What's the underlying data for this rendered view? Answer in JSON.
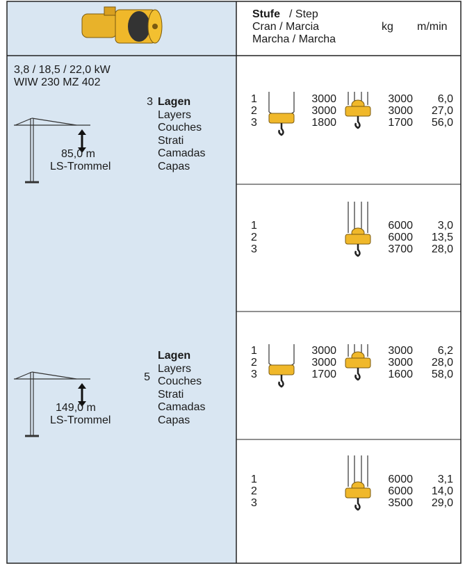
{
  "header": {
    "step_bold": "Stufe",
    "step_rest": "/ Step",
    "line2": "Cran / Marcia",
    "line3": "Marcha / Marcha",
    "kg": "kg",
    "speed": "m/min"
  },
  "motor": {
    "power": "3,8 / 18,5 / 22,0 kW",
    "model": "WIW 230 MZ 402"
  },
  "groups": [
    {
      "layers_count": "3",
      "labels": [
        "Lagen",
        "Layers",
        "Couches",
        "Strati",
        "Camadas",
        "Capas"
      ],
      "length": "85,0 m",
      "drum": "LS-Trommel"
    },
    {
      "layers_count": "5",
      "labels": [
        "Lagen",
        "Layers",
        "Couches",
        "Strati",
        "Camadas",
        "Capas"
      ],
      "length": "149,0 m",
      "drum": "LS-Trommel"
    }
  ],
  "sections": [
    {
      "steps": [
        "1",
        "2",
        "3"
      ],
      "kg_two_fall": [
        "3000",
        "3000",
        "1800"
      ],
      "kg_four_fall": [
        "3000",
        "3000",
        "1700"
      ],
      "speed": [
        "6,0",
        "27,0",
        "56,0"
      ]
    },
    {
      "steps": [
        "1",
        "2",
        "3"
      ],
      "kg_four_fall": [
        "6000",
        "6000",
        "3700"
      ],
      "speed": [
        "3,0",
        "13,5",
        "28,0"
      ]
    },
    {
      "steps": [
        "1",
        "2",
        "3"
      ],
      "kg_two_fall": [
        "3000",
        "3000",
        "1700"
      ],
      "kg_four_fall": [
        "3000",
        "3000",
        "1600"
      ],
      "speed": [
        "6,2",
        "28,0",
        "58,0"
      ]
    },
    {
      "steps": [
        "1",
        "2",
        "3"
      ],
      "kg_four_fall": [
        "6000",
        "6000",
        "3500"
      ],
      "speed": [
        "3,1",
        "14,0",
        "29,0"
      ]
    }
  ]
}
